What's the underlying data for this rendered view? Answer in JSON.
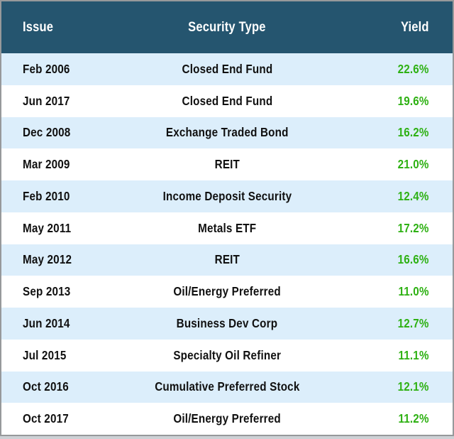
{
  "table": {
    "columns": [
      {
        "key": "issue",
        "label": "Issue"
      },
      {
        "key": "security_type",
        "label": "Security Type"
      },
      {
        "key": "yield",
        "label": "Yield"
      }
    ],
    "rows": [
      {
        "issue": "Feb 2006",
        "security_type": "Closed End Fund",
        "yield": "22.6%"
      },
      {
        "issue": "Jun 2017",
        "security_type": "Closed End Fund",
        "yield": "19.6%"
      },
      {
        "issue": "Dec 2008",
        "security_type": "Exchange Traded Bond",
        "yield": "16.2%"
      },
      {
        "issue": "Mar 2009",
        "security_type": "REIT",
        "yield": "21.0%"
      },
      {
        "issue": "Feb 2010",
        "security_type": "Income Deposit Security",
        "yield": "12.4%"
      },
      {
        "issue": "May 2011",
        "security_type": "Metals ETF",
        "yield": "17.2%"
      },
      {
        "issue": "May 2012",
        "security_type": "REIT",
        "yield": "16.6%"
      },
      {
        "issue": "Sep 2013",
        "security_type": "Oil/Energy Preferred",
        "yield": "11.0%"
      },
      {
        "issue": "Jun 2014",
        "security_type": "Business Dev Corp",
        "yield": "12.7%"
      },
      {
        "issue": "Jul 2015",
        "security_type": "Specialty Oil Refiner",
        "yield": "11.1%"
      },
      {
        "issue": "Oct 2016",
        "security_type": "Cumulative Preferred Stock",
        "yield": "12.1%"
      },
      {
        "issue": "Oct 2017",
        "security_type": "Oil/Energy Preferred",
        "yield": "11.2%"
      }
    ]
  },
  "colors": {
    "header_bg": "#25556f",
    "header_text": "#ffffff",
    "row_bg": "#ffffff",
    "row_alt_bg": "#dceefb",
    "row_text": "#101010",
    "yield_text": "#2eb113",
    "border": "#97999b",
    "page_bg": "#cdd1d5"
  }
}
